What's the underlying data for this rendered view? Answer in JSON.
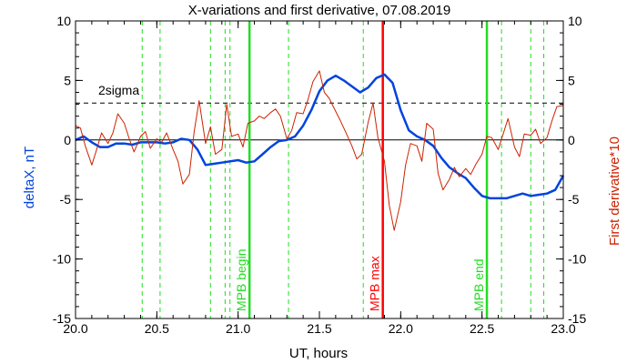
{
  "chart_data": {
    "type": "line",
    "title": "X-variations and first derivative, 07.08.2019",
    "xlabel": "UT, hours",
    "ylabel_left": "deltaX, nT",
    "ylabel_right": "First derivative*10",
    "xlim": [
      20.0,
      23.0
    ],
    "ylim": [
      -15,
      10
    ],
    "x_ticks": [
      "20.0",
      "20.5",
      "21.0",
      "21.5",
      "22.0",
      "22.5",
      "23.0"
    ],
    "y_ticks": [
      "10",
      "5",
      "0",
      "-5",
      "-10",
      "-15"
    ],
    "colors": {
      "deltaX": "#0044dd",
      "derivative": "#cc2200",
      "mpb_max": "#ff0000",
      "mpb_bounds": "#22dd22",
      "threshold": "#000000"
    },
    "threshold": {
      "label": "2sigma",
      "value": 3.1,
      "style": "dashed"
    },
    "zero_line": 0,
    "markers": [
      {
        "label": "MPB begin",
        "x": 21.07,
        "color": "#22dd22"
      },
      {
        "label": "MPB max",
        "x": 21.89,
        "color": "#ff0000"
      },
      {
        "label": "MPB end",
        "x": 22.53,
        "color": "#22dd22"
      }
    ],
    "dashed_verticals": [
      20.41,
      20.52,
      20.83,
      20.92,
      20.95,
      21.31,
      21.77,
      22.62,
      22.8,
      22.88
    ],
    "series": [
      {
        "id": "deltaX",
        "x": [
          20.0,
          20.05,
          20.1,
          20.15,
          20.2,
          20.25,
          20.3,
          20.35,
          20.4,
          20.45,
          20.5,
          20.55,
          20.6,
          20.65,
          20.7,
          20.75,
          20.8,
          20.85,
          20.9,
          20.95,
          21.0,
          21.05,
          21.1,
          21.15,
          21.2,
          21.25,
          21.3,
          21.35,
          21.4,
          21.45,
          21.5,
          21.55,
          21.6,
          21.65,
          21.7,
          21.75,
          21.8,
          21.85,
          21.9,
          21.95,
          22.0,
          22.05,
          22.1,
          22.15,
          22.2,
          22.25,
          22.3,
          22.35,
          22.4,
          22.45,
          22.5,
          22.55,
          22.6,
          22.65,
          22.7,
          22.75,
          22.8,
          22.85,
          22.9,
          22.95,
          23.0
        ],
        "values": [
          0.0,
          0.3,
          -0.2,
          -0.6,
          -0.6,
          -0.3,
          -0.3,
          -0.4,
          -0.2,
          -0.2,
          -0.2,
          -0.3,
          -0.2,
          0.1,
          0.0,
          -0.8,
          -2.1,
          -2.0,
          -1.9,
          -1.8,
          -1.7,
          -1.9,
          -1.8,
          -1.2,
          -0.6,
          -0.1,
          0.0,
          0.3,
          1.2,
          2.5,
          4.1,
          5.0,
          5.4,
          5.0,
          4.5,
          4.0,
          4.4,
          5.2,
          5.5,
          4.8,
          2.5,
          0.8,
          0.3,
          0.0,
          -0.5,
          -1.5,
          -2.3,
          -2.8,
          -3.2,
          -4.0,
          -4.7,
          -4.9,
          -4.9,
          -4.9,
          -4.7,
          -4.5,
          -4.7,
          -4.6,
          -4.5,
          -4.2,
          -3.0
        ]
      },
      {
        "id": "derivative",
        "x": [
          20.0,
          20.03,
          20.06,
          20.1,
          20.13,
          20.16,
          20.2,
          20.23,
          20.26,
          20.3,
          20.33,
          20.36,
          20.4,
          20.43,
          20.46,
          20.5,
          20.53,
          20.56,
          20.6,
          20.63,
          20.66,
          20.7,
          20.73,
          20.76,
          20.8,
          20.83,
          20.86,
          20.9,
          20.93,
          20.96,
          21.0,
          21.03,
          21.06,
          21.1,
          21.13,
          21.16,
          21.2,
          21.23,
          21.26,
          21.3,
          21.33,
          21.36,
          21.4,
          21.43,
          21.46,
          21.5,
          21.53,
          21.56,
          21.6,
          21.63,
          21.66,
          21.7,
          21.73,
          21.76,
          21.8,
          21.83,
          21.86,
          21.9,
          21.93,
          21.96,
          22.0,
          22.03,
          22.06,
          22.1,
          22.13,
          22.16,
          22.2,
          22.23,
          22.26,
          22.3,
          22.33,
          22.36,
          22.4,
          22.43,
          22.46,
          22.5,
          22.53,
          22.56,
          22.6,
          22.63,
          22.66,
          22.7,
          22.73,
          22.76,
          22.8,
          22.83,
          22.86,
          22.9,
          22.93,
          22.96,
          23.0
        ],
        "values": [
          1.2,
          1.0,
          -0.5,
          -2.1,
          -0.8,
          0.6,
          -0.3,
          0.6,
          2.2,
          1.4,
          0.1,
          -1.0,
          0.3,
          0.7,
          -0.7,
          0.1,
          -0.2,
          0.6,
          -0.8,
          -1.8,
          -3.7,
          -2.9,
          0.7,
          3.3,
          -0.3,
          1.1,
          -1.2,
          -0.8,
          3.0,
          0.3,
          0.5,
          -0.6,
          1.4,
          1.6,
          2.0,
          1.8,
          2.3,
          2.6,
          2.0,
          0.1,
          0.8,
          2.3,
          2.2,
          3.4,
          4.9,
          5.8,
          4.0,
          3.5,
          2.4,
          1.6,
          0.7,
          -0.5,
          -1.6,
          -1.2,
          1.5,
          3.1,
          0.2,
          -1.8,
          -5.5,
          -7.6,
          -5.2,
          -2.1,
          -0.3,
          -0.5,
          -1.8,
          1.4,
          0.9,
          -2.8,
          -4.2,
          -3.3,
          -2.3,
          -3.1,
          -2.4,
          -2.9,
          -2.1,
          -1.2,
          0.3,
          0.2,
          -0.8,
          0.5,
          1.8,
          -0.6,
          -1.4,
          0.5,
          0.4,
          0.9,
          -0.3,
          0.2,
          1.6,
          2.8,
          2.9
        ]
      }
    ]
  }
}
